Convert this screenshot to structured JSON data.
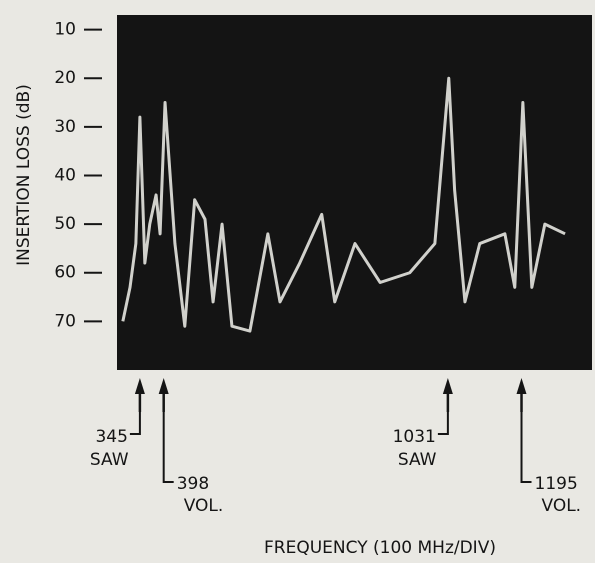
{
  "chart_data": {
    "type": "line",
    "y_label": "INSERTION LOSS (dB)",
    "x_label": "FREQUENCY (100 MHz/DIV)",
    "x": [
      307,
      323,
      336,
      345,
      356,
      367,
      381,
      390,
      401,
      423,
      445,
      467,
      490,
      508,
      528,
      550,
      590,
      630,
      657,
      701,
      750,
      779,
      824,
      880,
      946,
      1002,
      1033,
      1046,
      1069,
      1102,
      1158,
      1180,
      1198,
      1218,
      1247,
      1292
    ],
    "series": [
      {
        "color": "#e6e6e0",
        "values": [
          70,
          63,
          54,
          28,
          58,
          50,
          44,
          52,
          25,
          54,
          71,
          45,
          49,
          66,
          50,
          71,
          72,
          52,
          66,
          58,
          48,
          66,
          54,
          62,
          60,
          54,
          20,
          43,
          66,
          54,
          52,
          63,
          25,
          63,
          50,
          52
        ]
      }
    ],
    "xlim": [
      294,
      1352
    ],
    "ylim": [
      80,
      7
    ],
    "yticks": [
      10,
      20,
      30,
      40,
      50,
      60,
      70
    ],
    "background": "#141414",
    "annotations": [
      {
        "x": 345,
        "text": "SAW"
      },
      {
        "x": 398,
        "text": "VOL."
      },
      {
        "x": 1031,
        "text": "SAW"
      },
      {
        "x": 1195,
        "text": "VOL."
      }
    ]
  }
}
